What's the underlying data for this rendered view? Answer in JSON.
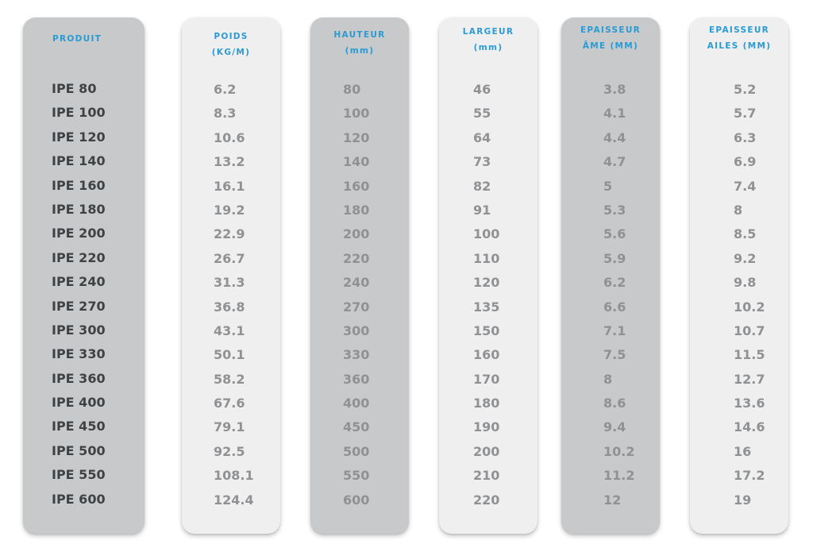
{
  "columns": [
    {
      "key": "produit",
      "header": [
        "PRODUIT"
      ],
      "values": [
        "IPE 80",
        "IPE 100",
        "IPE 120",
        "IPE 140",
        "IPE 160",
        "IPE 180",
        "IPE 200",
        "IPE 220",
        "IPE 240",
        "IPE 270",
        "IPE 300",
        "IPE 330",
        "IPE 360",
        "IPE 400",
        "IPE 450",
        "IPE 500",
        "IPE 550",
        "IPE 600"
      ]
    },
    {
      "key": "poids",
      "header": [
        "POIDS",
        "(KG/M)"
      ],
      "values": [
        "6.2",
        "8.3",
        "10.6",
        "13.2",
        "16.1",
        "19.2",
        "22.9",
        "26.7",
        "31.3",
        "36.8",
        "43.1",
        "50.1",
        "58.2",
        "67.6",
        "79.1",
        "92.5",
        "108.1",
        "124.4"
      ]
    },
    {
      "key": "hauteur",
      "header": [
        "HAUTEUR",
        "(mm)"
      ],
      "values": [
        "80",
        "100",
        "120",
        "140",
        "160",
        "180",
        "200",
        "220",
        "240",
        "270",
        "300",
        "330",
        "360",
        "400",
        "450",
        "500",
        "550",
        "600"
      ]
    },
    {
      "key": "largeur",
      "header": [
        "LARGEUR",
        "(mm)"
      ],
      "values": [
        "46",
        "55",
        "64",
        "73",
        "82",
        "91",
        "100",
        "110",
        "120",
        "135",
        "150",
        "160",
        "170",
        "180",
        "190",
        "200",
        "210",
        "220"
      ]
    },
    {
      "key": "epaisseur_ame",
      "header": [
        "EPAISSEUR",
        "ÂME (MM)"
      ],
      "values": [
        "3.8",
        "4.1",
        "4.4",
        "4.7",
        "5",
        "5.3",
        "5.6",
        "5.9",
        "6.2",
        "6.6",
        "7.1",
        "7.5",
        "8",
        "8.6",
        "9.4",
        "10.2",
        "11.2",
        "12"
      ]
    },
    {
      "key": "epaisseur_ailes",
      "header": [
        "EPAISSEUR",
        "AILES (MM)"
      ],
      "values": [
        "5.2",
        "5.7",
        "6.3",
        "6.9",
        "7.4",
        "8",
        "8.5",
        "9.2",
        "9.8",
        "10.2",
        "10.7",
        "11.5",
        "12.7",
        "13.6",
        "14.6",
        "16",
        "17.2",
        "19"
      ]
    }
  ],
  "colors": {
    "header_blue": "#2a9bd3",
    "column_dark": "#c8c9cb",
    "column_light": "#efeff0",
    "product_text": "#3f4244",
    "value_text": "#8f9193"
  }
}
